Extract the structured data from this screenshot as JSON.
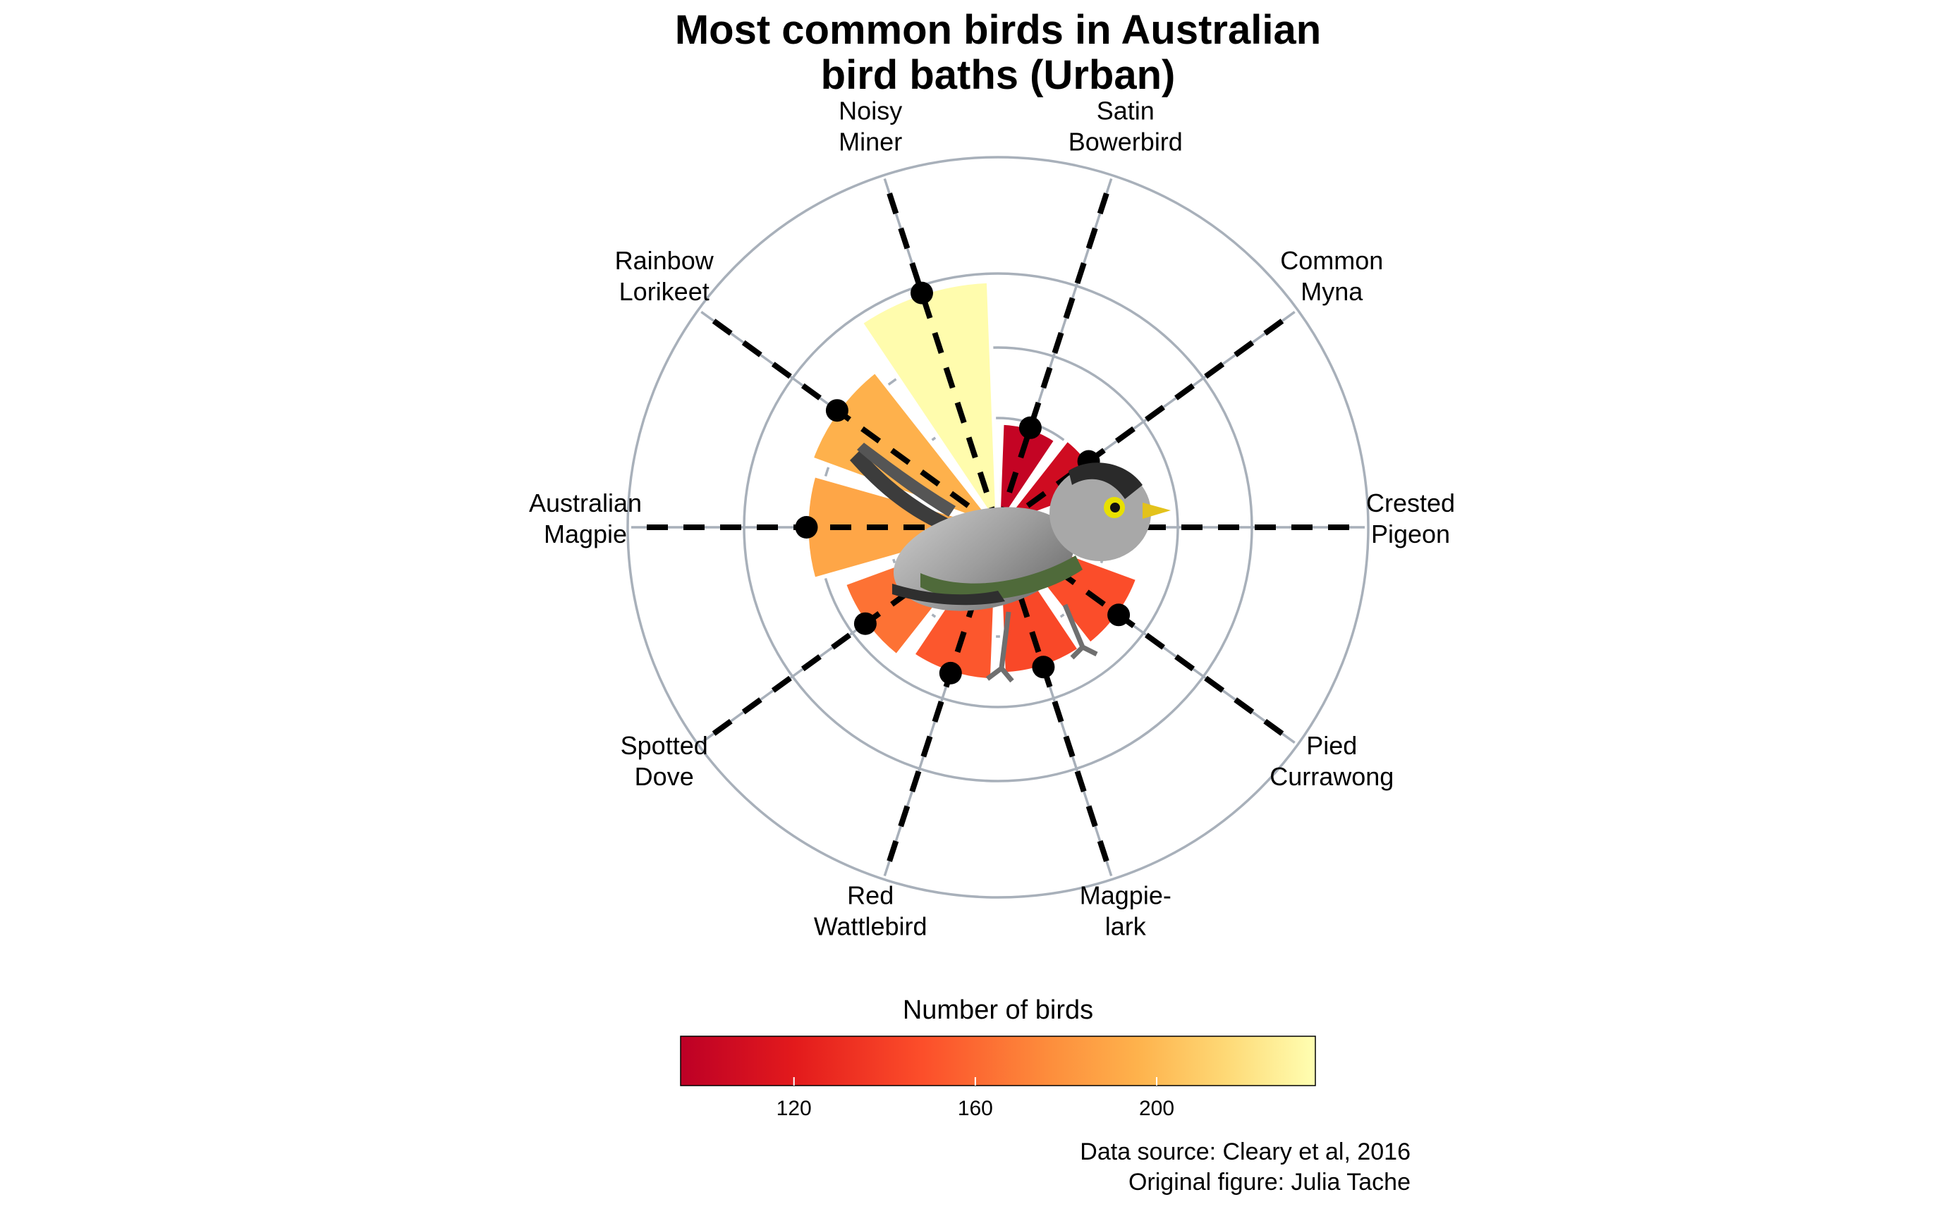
{
  "title_line1": "Most common birds in Australian",
  "title_line2": "bird baths (Urban)",
  "legend_title": "Number of birds",
  "caption_line1": "Data source: Cleary et al, 2016",
  "caption_line2": "Original figure: Julia Tache",
  "chart_data": {
    "type": "bar",
    "coord": "polar",
    "categories": [
      [
        "Satin",
        "Bowerbird"
      ],
      [
        "Common",
        "Myna"
      ],
      [
        "Crested",
        "Pigeon"
      ],
      [
        "Pied",
        "Currawong"
      ],
      [
        "Magpie-",
        "lark"
      ],
      [
        "Red",
        "Wattlebird"
      ],
      [
        "Spotted",
        "Dove"
      ],
      [
        "Australian",
        "Magpie"
      ],
      [
        "Rainbow",
        "Lorikeet"
      ],
      [
        "Noisy",
        "Miner"
      ]
    ],
    "values": [
      99,
      106,
      103,
      141,
      139,
      145,
      155,
      181,
      188,
      233
    ],
    "fill_scale": {
      "label": "Number of birds",
      "range": [
        95,
        235
      ],
      "ticks": [
        120,
        160,
        200
      ],
      "palette": "YlOrRd (reversed)",
      "colors": [
        "#bd0026",
        "#e31a1c",
        "#fc4e2a",
        "#fd8d3c",
        "#feb24c",
        "#fed976",
        "#ffffb2"
      ]
    },
    "grid": true,
    "grid_color": "#a8b0ba",
    "segment_style": "dashed black line from centre to label with point at bar value"
  },
  "image": "noisy-miner-bird-illustration"
}
